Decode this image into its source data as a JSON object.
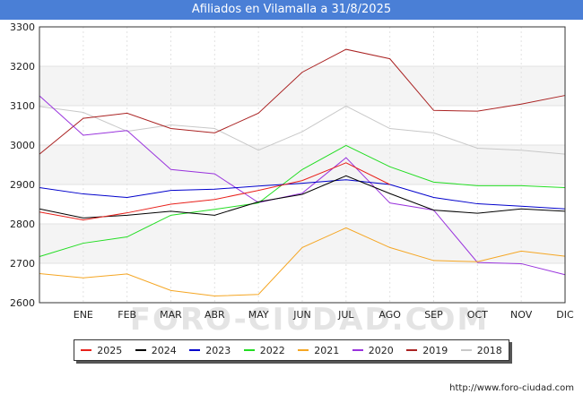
{
  "title": "Afiliados en Vilamalla a 31/8/2025",
  "source": "http://www.foro-ciudad.com",
  "watermark": "FORO-CIUDAD.COM",
  "chart_data": {
    "type": "line",
    "categories": [
      "",
      "ENE",
      "FEB",
      "MAR",
      "ABR",
      "MAY",
      "JUN",
      "JUL",
      "AGO",
      "SEP",
      "OCT",
      "NOV",
      "DIC"
    ],
    "ylim": [
      2600,
      3300
    ],
    "yticks": [
      2600,
      2700,
      2800,
      2900,
      3000,
      3100,
      3200,
      3300
    ],
    "grid": true,
    "legend_position": "bottom",
    "series": [
      {
        "name": "2025",
        "color": "#e8211b",
        "values": [
          2830,
          2810,
          2828,
          2850,
          2862,
          2885,
          2910,
          2955,
          2900,
          null,
          null,
          null,
          null
        ]
      },
      {
        "name": "2024",
        "color": "#000000",
        "values": [
          2838,
          2815,
          2822,
          2832,
          2822,
          2856,
          2875,
          2922,
          2877,
          2835,
          2827,
          2838,
          2832
        ]
      },
      {
        "name": "2023",
        "color": "#0000cc",
        "values": [
          2892,
          2876,
          2867,
          2885,
          2888,
          2896,
          2903,
          2912,
          2900,
          2867,
          2851,
          2845,
          2838
        ]
      },
      {
        "name": "2022",
        "color": "#22dd22",
        "values": [
          2717,
          2751,
          2767,
          2822,
          2837,
          2853,
          2938,
          2999,
          2945,
          2906,
          2897,
          2897,
          2892
        ]
      },
      {
        "name": "2021",
        "color": "#f5a623",
        "values": [
          2674,
          2663,
          2673,
          2631,
          2617,
          2621,
          2740,
          2790,
          2740,
          2707,
          2704,
          2731,
          2718
        ]
      },
      {
        "name": "2020",
        "color": "#9933dd",
        "values": [
          3125,
          3025,
          3037,
          2938,
          2927,
          2854,
          2878,
          2968,
          2853,
          2835,
          2702,
          2699,
          2671
        ]
      },
      {
        "name": "2019",
        "color": "#aa2222",
        "values": [
          2977,
          3068,
          3081,
          3042,
          3031,
          3081,
          3185,
          3243,
          3219,
          3088,
          3086,
          3104,
          3126
        ]
      },
      {
        "name": "2018",
        "color": "#c8c8c8",
        "values": [
          3098,
          3083,
          3035,
          3051,
          3042,
          2987,
          3034,
          3099,
          3042,
          3031,
          2992,
          2987,
          2977
        ]
      }
    ]
  }
}
